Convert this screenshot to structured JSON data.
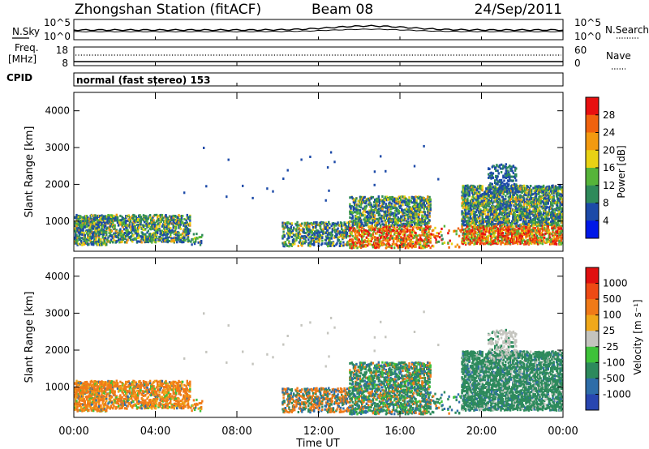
{
  "header": {
    "station": "Zhongshan Station (fitACF)",
    "beam": "Beam 08",
    "date": "24/Sep/2011"
  },
  "noise_panel": {
    "left_label": "N.Sky",
    "right_label": "N.Search",
    "left_ticks": [
      "10^5",
      "10^0"
    ],
    "right_ticks": [
      "10^5",
      "10^0"
    ]
  },
  "freq_panel": {
    "left_label_1": "Freq.",
    "left_label_2": "[MHz]",
    "right_label": "Nave",
    "left_ticks": [
      "18",
      "8"
    ],
    "right_ticks": [
      "60",
      "0"
    ]
  },
  "cpid": {
    "label": "CPID",
    "mode_text": "normal (fast stereo) 153"
  },
  "chart_data": [
    {
      "type": "heatmap",
      "quantity": "Power",
      "ylabel": "Slant Range [km]",
      "yticks": [
        1000,
        2000,
        3000,
        4000
      ],
      "ylim": [
        180,
        4500
      ],
      "xlim": [
        0,
        24
      ],
      "xticks": [
        0,
        4,
        8,
        12,
        16,
        20,
        24
      ],
      "colorbar_label": "Power [dB]",
      "colorbar_ticks": [
        "4",
        "8",
        "12",
        "16",
        "20",
        "24",
        "28"
      ],
      "colorbar_colors": [
        "#0018e8",
        "#1c4aa8",
        "#2f8a5a",
        "#56b43a",
        "#e8d214",
        "#f39a10",
        "#f0620e",
        "#e81010"
      ],
      "grid": false
    },
    {
      "type": "heatmap",
      "quantity": "Velocity",
      "ylabel": "Slant Range [km]",
      "yticks": [
        1000,
        2000,
        3000,
        4000
      ],
      "ylim": [
        180,
        4500
      ],
      "xlim": [
        0,
        24
      ],
      "xticks": [
        0,
        4,
        8,
        12,
        16,
        20,
        24
      ],
      "colorbar_label": "Velocity [m s⁻¹]",
      "colorbar_ticks": [
        "1000",
        "500",
        "100",
        "25",
        "-25",
        "-100",
        "-500",
        "-1000"
      ],
      "colorbar_colors": [
        "#2846b0",
        "#2e6da8",
        "#2d8a5c",
        "#3ec23a",
        "#c4c4be",
        "#f0a81a",
        "#f07a18",
        "#ee4a14",
        "#e01010"
      ],
      "grid": false
    }
  ],
  "xaxis": {
    "ticks": [
      "00:00",
      "04:00",
      "08:00",
      "12:00",
      "16:00",
      "20:00",
      "00:00"
    ],
    "label": "Time UT"
  }
}
